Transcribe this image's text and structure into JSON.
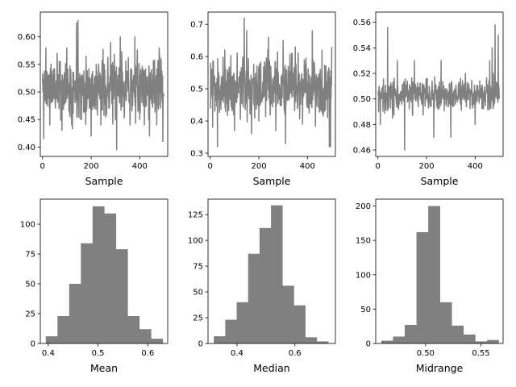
{
  "chart_data": [
    {
      "type": "line",
      "xlabel": "Sample",
      "ylabel": "",
      "xlim": [
        -9,
        515
      ],
      "ylim": [
        0.383,
        0.645
      ],
      "xticks": [
        0,
        200,
        400
      ],
      "yticks": [
        0.4,
        0.45,
        0.5,
        0.55,
        0.6
      ],
      "ytick_format": 2,
      "color": "#808080",
      "seed": 11,
      "n": 500,
      "center": 0.508,
      "spread": 0.048,
      "anchors": [
        {
          "x": 2,
          "y": 0.5
        },
        {
          "x": 5,
          "y": 0.415
        },
        {
          "x": 14,
          "y": 0.58
        },
        {
          "x": 30,
          "y": 0.44
        },
        {
          "x": 60,
          "y": 0.57
        },
        {
          "x": 80,
          "y": 0.43
        },
        {
          "x": 100,
          "y": 0.58
        },
        {
          "x": 120,
          "y": 0.44
        },
        {
          "x": 140,
          "y": 0.625
        },
        {
          "x": 146,
          "y": 0.63
        },
        {
          "x": 160,
          "y": 0.45
        },
        {
          "x": 200,
          "y": 0.42
        },
        {
          "x": 240,
          "y": 0.44
        },
        {
          "x": 280,
          "y": 0.59
        },
        {
          "x": 300,
          "y": 0.45
        },
        {
          "x": 305,
          "y": 0.395
        },
        {
          "x": 320,
          "y": 0.6
        },
        {
          "x": 360,
          "y": 0.44
        },
        {
          "x": 380,
          "y": 0.6
        },
        {
          "x": 400,
          "y": 0.45
        },
        {
          "x": 440,
          "y": 0.42
        },
        {
          "x": 470,
          "y": 0.44
        },
        {
          "x": 480,
          "y": 0.58
        },
        {
          "x": 495,
          "y": 0.41
        }
      ]
    },
    {
      "type": "line",
      "xlabel": "Sample",
      "ylabel": "",
      "xlim": [
        -9,
        515
      ],
      "ylim": [
        0.29,
        0.738
      ],
      "xticks": [
        0,
        200,
        400
      ],
      "yticks": [
        0.3,
        0.4,
        0.5,
        0.6,
        0.7
      ],
      "ytick_format": 1,
      "color": "#808080",
      "seed": 23,
      "n": 500,
      "center": 0.505,
      "spread": 0.085,
      "anchors": [
        {
          "x": 3,
          "y": 0.5
        },
        {
          "x": 10,
          "y": 0.38
        },
        {
          "x": 30,
          "y": 0.32
        },
        {
          "x": 60,
          "y": 0.62
        },
        {
          "x": 100,
          "y": 0.37
        },
        {
          "x": 140,
          "y": 0.72
        },
        {
          "x": 150,
          "y": 0.68
        },
        {
          "x": 170,
          "y": 0.36
        },
        {
          "x": 200,
          "y": 0.4
        },
        {
          "x": 240,
          "y": 0.66
        },
        {
          "x": 270,
          "y": 0.37
        },
        {
          "x": 300,
          "y": 0.65
        },
        {
          "x": 310,
          "y": 0.33
        },
        {
          "x": 350,
          "y": 0.63
        },
        {
          "x": 380,
          "y": 0.39
        },
        {
          "x": 420,
          "y": 0.68
        },
        {
          "x": 460,
          "y": 0.62
        },
        {
          "x": 490,
          "y": 0.32
        },
        {
          "x": 495,
          "y": 0.32
        },
        {
          "x": 500,
          "y": 0.63
        }
      ]
    },
    {
      "type": "line",
      "xlabel": "Sample",
      "ylabel": "",
      "xlim": [
        -9,
        515
      ],
      "ylim": [
        0.455,
        0.568
      ],
      "xticks": [
        0,
        200,
        400
      ],
      "yticks": [
        0.46,
        0.48,
        0.5,
        0.52,
        0.54,
        0.56
      ],
      "ytick_format": 2,
      "color": "#808080",
      "seed": 37,
      "n": 500,
      "center": 0.503,
      "spread": 0.011,
      "anchors": [
        {
          "x": 3,
          "y": 0.49
        },
        {
          "x": 10,
          "y": 0.48
        },
        {
          "x": 40,
          "y": 0.556
        },
        {
          "x": 60,
          "y": 0.485
        },
        {
          "x": 80,
          "y": 0.53
        },
        {
          "x": 110,
          "y": 0.46
        },
        {
          "x": 150,
          "y": 0.53
        },
        {
          "x": 200,
          "y": 0.5
        },
        {
          "x": 230,
          "y": 0.47
        },
        {
          "x": 260,
          "y": 0.53
        },
        {
          "x": 300,
          "y": 0.47
        },
        {
          "x": 360,
          "y": 0.52
        },
        {
          "x": 400,
          "y": 0.48
        },
        {
          "x": 440,
          "y": 0.5
        },
        {
          "x": 460,
          "y": 0.53
        },
        {
          "x": 470,
          "y": 0.54
        },
        {
          "x": 475,
          "y": 0.52
        },
        {
          "x": 482,
          "y": 0.558
        },
        {
          "x": 490,
          "y": 0.5
        },
        {
          "x": 495,
          "y": 0.55
        },
        {
          "x": 499,
          "y": 0.5
        }
      ]
    },
    {
      "type": "bar",
      "xlabel": "Mean",
      "ylabel": "",
      "xlim": [
        0.384,
        0.64
      ],
      "ylim": [
        0,
        121
      ],
      "xticks": [
        0.4,
        0.5,
        0.6
      ],
      "xtick_format": 1,
      "yticks": [
        0,
        25,
        50,
        75,
        100
      ],
      "ytick_format": 0,
      "color": "#808080",
      "bin_edges": [
        0.395,
        0.4185,
        0.442,
        0.4655,
        0.489,
        0.5125,
        0.536,
        0.5595,
        0.583,
        0.6065,
        0.63
      ],
      "values": [
        6,
        23,
        50,
        84,
        115,
        109,
        79,
        23,
        12,
        4
      ]
    },
    {
      "type": "bar",
      "xlabel": "Median",
      "ylabel": "",
      "xlim": [
        0.3,
        0.74
      ],
      "ylim": [
        0,
        140
      ],
      "xticks": [
        0.4,
        0.6
      ],
      "xtick_format": 1,
      "yticks": [
        0,
        25,
        50,
        75,
        100,
        125
      ],
      "ytick_format": 0,
      "color": "#808080",
      "bin_edges": [
        0.32,
        0.3595,
        0.399,
        0.4385,
        0.478,
        0.5175,
        0.557,
        0.5965,
        0.636,
        0.6755,
        0.715
      ],
      "values": [
        7,
        23,
        40,
        87,
        112,
        134,
        56,
        37,
        6,
        2
      ]
    },
    {
      "type": "bar",
      "xlabel": "Midrange",
      "ylabel": "",
      "xlim": [
        0.455,
        0.57
      ],
      "ylim": [
        0,
        210
      ],
      "xticks": [
        0.5,
        0.55
      ],
      "xtick_format": 2,
      "yticks": [
        0,
        50,
        100,
        150,
        200
      ],
      "ytick_format": 0,
      "color": "#808080",
      "bin_edges": [
        0.46,
        0.4706,
        0.4812,
        0.4918,
        0.5024,
        0.513,
        0.5236,
        0.5342,
        0.5448,
        0.5554,
        0.566
      ],
      "values": [
        4,
        10,
        27,
        162,
        200,
        60,
        26,
        13,
        3,
        5
      ]
    }
  ]
}
